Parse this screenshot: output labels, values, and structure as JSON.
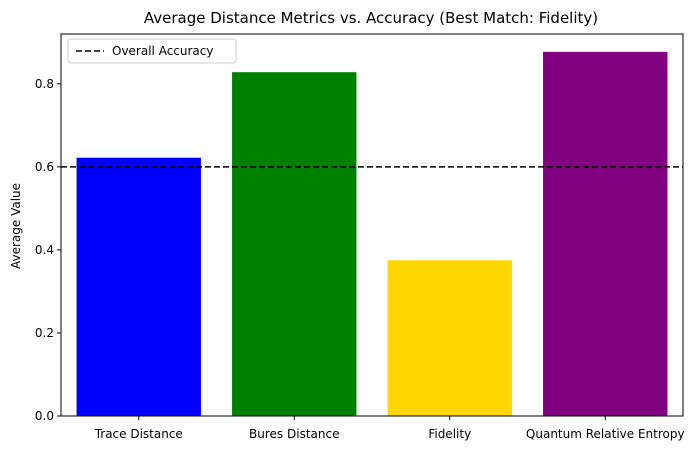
{
  "chart_data": {
    "type": "bar",
    "title": "Average Distance Metrics vs. Accuracy (Best Match: Fidelity)",
    "xlabel": "",
    "ylabel": "Average Value",
    "categories": [
      "Trace Distance",
      "Bures Distance",
      "Fidelity",
      "Quantum Relative Entropy"
    ],
    "values": [
      0.622,
      0.828,
      0.375,
      0.877
    ],
    "colors": [
      "#0000ff",
      "#008000",
      "#ffd700",
      "#800080"
    ],
    "ylim": [
      0,
      0.92
    ],
    "yticks": [
      0.0,
      0.2,
      0.4,
      0.6,
      0.8
    ],
    "ytick_labels": [
      "0.0",
      "0.2",
      "0.4",
      "0.6",
      "0.8"
    ],
    "reference_line": {
      "label": "Overall Accuracy",
      "value": 0.6,
      "style": "dashed",
      "color": "#000000"
    },
    "legend": {
      "placement": "top-left"
    },
    "grid": false
  }
}
